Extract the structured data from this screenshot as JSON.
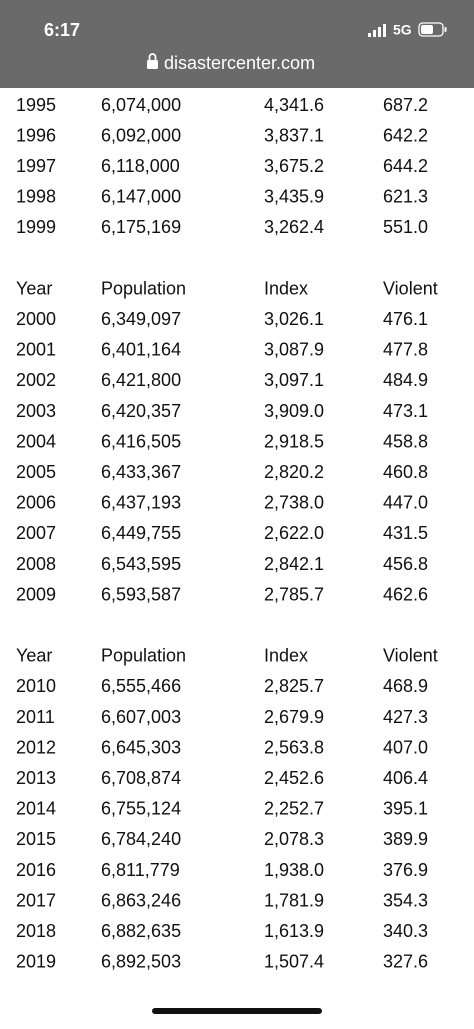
{
  "status_bar": {
    "time": "6:17",
    "network": "5G"
  },
  "browser": {
    "url": "disastercenter.com"
  },
  "table": {
    "sections": [
      {
        "rows": [
          [
            "1995",
            "6,074,000",
            "4,341.6",
            "687.2"
          ],
          [
            "1996",
            "6,092,000",
            "3,837.1",
            "642.2"
          ],
          [
            "1997",
            "6,118,000",
            "3,675.2",
            "644.2"
          ],
          [
            "1998",
            "6,147,000",
            "3,435.9",
            "621.3"
          ],
          [
            "1999",
            "6,175,169",
            "3,262.4",
            "551.0"
          ]
        ]
      },
      {
        "header": [
          "Year",
          "Population",
          "Index",
          "Violent"
        ],
        "rows": [
          [
            "2000",
            "6,349,097",
            "3,026.1",
            "476.1"
          ],
          [
            "2001",
            "6,401,164",
            "3,087.9",
            "477.8"
          ],
          [
            "2002",
            "6,421,800",
            "3,097.1",
            "484.9"
          ],
          [
            "2003",
            "6,420,357",
            "3,909.0",
            "473.1"
          ],
          [
            "2004",
            "6,416,505",
            "2,918.5",
            "458.8"
          ],
          [
            "2005",
            "6,433,367",
            "2,820.2",
            "460.8"
          ],
          [
            "2006",
            "6,437,193",
            "2,738.0",
            "447.0"
          ],
          [
            "2007",
            "6,449,755",
            "2,622.0",
            "431.5"
          ],
          [
            "2008",
            "6,543,595",
            "2,842.1",
            "456.8"
          ],
          [
            "2009",
            "6,593,587",
            "2,785.7",
            "462.6"
          ]
        ]
      },
      {
        "header": [
          "Year",
          "Population",
          "Index",
          "Violent"
        ],
        "rows": [
          [
            "2010",
            "6,555,466",
            "2,825.7",
            "468.9"
          ],
          [
            "2011",
            "6,607,003",
            "2,679.9",
            "427.3"
          ],
          [
            "2012",
            "6,645,303",
            "2,563.8",
            "407.0"
          ],
          [
            "2013",
            "6,708,874",
            "2,452.6",
            "406.4"
          ],
          [
            "2014",
            "6,755,124",
            "2,252.7",
            "395.1"
          ],
          [
            "2015",
            "6,784,240",
            "2,078.3",
            "389.9"
          ],
          [
            "2016",
            "6,811,779",
            "1,938.0",
            "376.9"
          ],
          [
            "2017",
            "6,863,246",
            "1,781.9",
            "354.3"
          ],
          [
            "2018",
            "6,882,635",
            "1,613.9",
            "340.3"
          ],
          [
            "2019",
            "6,892,503",
            "1,507.4",
            "327.6"
          ]
        ]
      }
    ]
  }
}
